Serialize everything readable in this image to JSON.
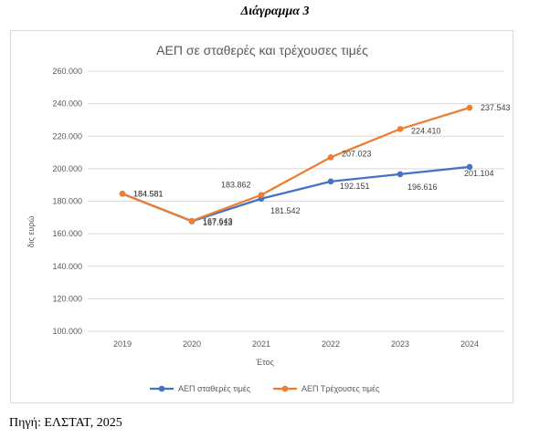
{
  "caption": "Διάγραμμα 3",
  "source": "Πηγή: ΕΛΣΤΑΤ, 2025",
  "chart_data": {
    "type": "line",
    "title": "ΑΕΠ σε σταθερές και τρέχουσες τιμές",
    "xlabel": "Έτος",
    "ylabel": "δις ευρώ",
    "categories": [
      "2019",
      "2020",
      "2021",
      "2022",
      "2023",
      "2024"
    ],
    "y_ticks": [
      "100.000",
      "120.000",
      "140.000",
      "160.000",
      "180.000",
      "200.000",
      "220.000",
      "240.000",
      "260.000"
    ],
    "ylim": [
      100000,
      260000
    ],
    "grid": true,
    "legend": "bottom",
    "series": [
      {
        "name": "ΑΕΠ σταθερές τιμές",
        "color": "#4472c4",
        "values": [
          184581,
          167643,
          181542,
          192151,
          196616,
          201104
        ],
        "labels": [
          "184.581",
          "167.643",
          "181.542",
          "192.151",
          "196.616",
          "201.104"
        ]
      },
      {
        "name": "ΑΕΠ Τρέχουσες τιμές",
        "color": "#ed7d31",
        "values": [
          184581,
          167913,
          183862,
          207023,
          224410,
          237543
        ],
        "labels": [
          "184.581",
          "167.913",
          "183.862",
          "207.023",
          "224.410",
          "237.543"
        ]
      }
    ]
  }
}
